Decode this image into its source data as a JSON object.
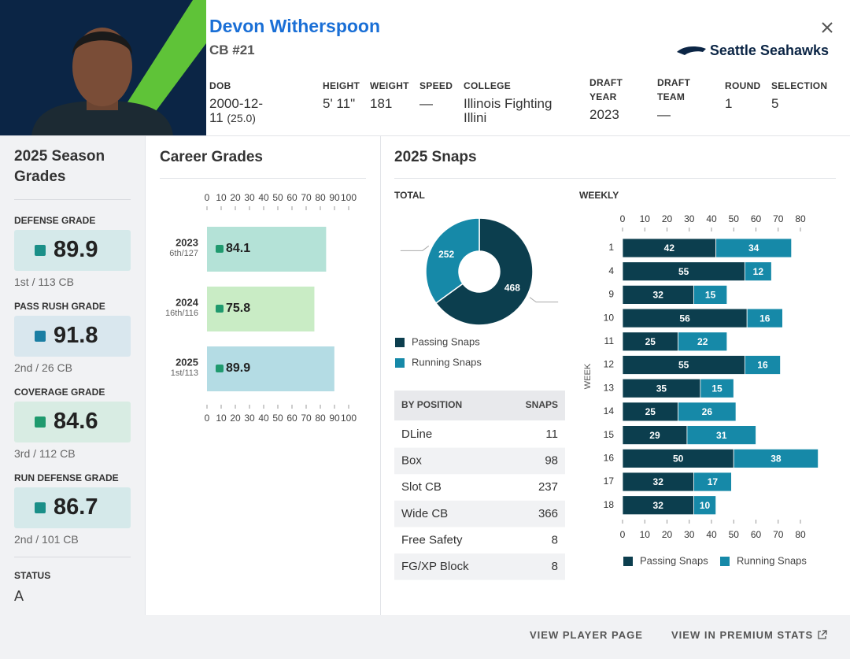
{
  "header": {
    "name": "Devon Witherspoon",
    "position": "CB #21",
    "team": "Seattle Seahawks",
    "bio": [
      {
        "label": "DOB",
        "value": "2000-12-11",
        "note": "(25.0)"
      },
      {
        "label": "HEIGHT",
        "value": "5' 11\""
      },
      {
        "label": "WEIGHT",
        "value": 181
      },
      {
        "label": "SPEED",
        "value": "—"
      },
      {
        "label": "COLLEGE",
        "value": "Illinois Fighting Illini"
      },
      {
        "label": "DRAFT YEAR",
        "value": 2023
      },
      {
        "label": "DRAFT TEAM",
        "value": "—"
      },
      {
        "label": "ROUND",
        "value": 1
      },
      {
        "label": "SELECTION",
        "value": 5
      }
    ]
  },
  "season_grades": {
    "title": "2025 Season Grades",
    "grades": [
      {
        "label": "DEFENSE GRADE",
        "value": 89.9,
        "rank": "1st / 113 CB",
        "color": "#1a8f88",
        "background": "#d5e9ea"
      },
      {
        "label": "PASS RUSH GRADE",
        "value": 91.8,
        "rank": "2nd / 26 CB",
        "color": "#1a7ea3",
        "background": "#d9e7ee"
      },
      {
        "label": "COVERAGE GRADE",
        "value": 84.6,
        "rank": "3rd / 112 CB",
        "color": "#1f9a6e",
        "background": "#d8ece3"
      },
      {
        "label": "RUN DEFENSE GRADE",
        "value": 86.7,
        "rank": "2nd / 101 CB",
        "color": "#1a8f88",
        "background": "#d5e9ea"
      }
    ],
    "status": {
      "label": "STATUS",
      "value": "A"
    }
  },
  "career_grades": {
    "type": "bar",
    "title": "Career Grades",
    "categories": [
      "2023",
      "2024",
      "2025"
    ],
    "ranks": [
      "6th/127",
      "16th/116",
      "1st/113"
    ],
    "values": [
      84.1,
      75.8,
      89.9
    ],
    "colors": [
      "#b4e2d7",
      "#c9ecc5",
      "#b4dce4"
    ],
    "dot_color": "#1f9a6e",
    "xlim": [
      0,
      100
    ],
    "xticks": [
      0,
      10,
      20,
      30,
      40,
      50,
      60,
      70,
      80,
      90,
      100
    ]
  },
  "snaps": {
    "title": "2025 Snaps",
    "total": {
      "type": "pie",
      "label": "TOTAL",
      "series": [
        {
          "name": "Passing Snaps",
          "color": "#0c3e4e",
          "value": 468
        },
        {
          "name": "Running Snaps",
          "color": "#1689a8",
          "value": 252
        }
      ]
    },
    "by_position": {
      "columns": [
        "BY POSITION",
        "SNAPS"
      ],
      "rows": [
        [
          "DLine",
          11
        ],
        [
          "Box",
          98
        ],
        [
          "Slot CB",
          237
        ],
        [
          "Wide CB",
          366
        ],
        [
          "Free Safety",
          8
        ],
        [
          "FG/XP Block",
          8
        ]
      ]
    },
    "weekly": {
      "type": "stacked-bar",
      "label": "WEEKLY",
      "y_label": "WEEK",
      "categories": [
        "1",
        "4",
        "9",
        "10",
        "11",
        "12",
        "13",
        "14",
        "15",
        "16",
        "17",
        "18"
      ],
      "series": [
        {
          "name": "Passing Snaps",
          "color": "#0c3e4e",
          "values": [
            42,
            55,
            32,
            56,
            25,
            55,
            35,
            25,
            29,
            50,
            32,
            32
          ]
        },
        {
          "name": "Running Snaps",
          "color": "#1689a8",
          "values": [
            34,
            12,
            15,
            16,
            22,
            16,
            15,
            26,
            31,
            38,
            17,
            10
          ]
        }
      ],
      "xlim": [
        0,
        88
      ],
      "xticks": [
        0,
        10,
        20,
        30,
        40,
        50,
        60,
        70,
        80
      ]
    }
  },
  "footer": {
    "links": [
      "VIEW PLAYER PAGE",
      "VIEW IN PREMIUM STATS"
    ]
  }
}
